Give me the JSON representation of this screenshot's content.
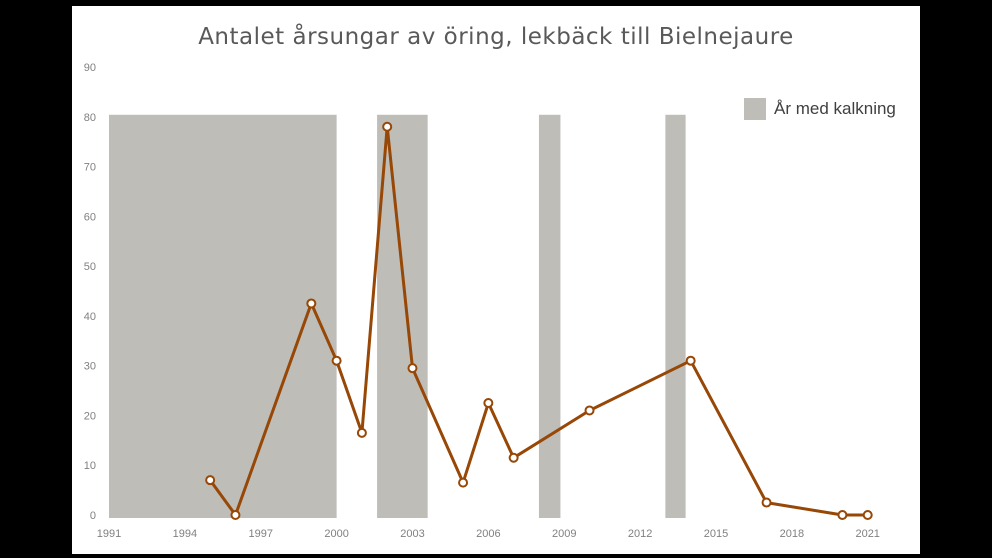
{
  "chart_data": {
    "type": "line",
    "title": "Antalet årsungar av öring, lekbäck till Bielnejaure",
    "xlabel": "",
    "ylabel": "",
    "xlim": [
      1991,
      2022
    ],
    "ylim": [
      0,
      90
    ],
    "x_ticks": [
      1991,
      1994,
      1997,
      2000,
      2003,
      2006,
      2009,
      2012,
      2015,
      2018,
      2021
    ],
    "y_ticks": [
      0,
      10,
      20,
      30,
      40,
      50,
      60,
      70,
      80,
      90
    ],
    "grid": false,
    "legend_position": "top-right",
    "series": [
      {
        "values": [
          {
            "x": 1995,
            "y": 7
          },
          {
            "x": 1996,
            "y": 0
          },
          {
            "x": 1999,
            "y": 42.5
          },
          {
            "x": 2000,
            "y": 31
          },
          {
            "x": 2001,
            "y": 16.5
          },
          {
            "x": 2002,
            "y": 78
          },
          {
            "x": 2003,
            "y": 29.5
          },
          {
            "x": 2005,
            "y": 6.5
          },
          {
            "x": 2006,
            "y": 22.5
          },
          {
            "x": 2007,
            "y": 11.5
          },
          {
            "x": 2010,
            "y": 21
          },
          {
            "x": 2014,
            "y": 31
          },
          {
            "x": 2017,
            "y": 2.5
          },
          {
            "x": 2020,
            "y": 0
          },
          {
            "x": 2021,
            "y": 0
          }
        ]
      }
    ],
    "shaded_periods": {
      "name": "År med kalkning",
      "ranges": [
        [
          1991,
          2000
        ],
        [
          2001.6,
          2003.6
        ],
        [
          2008,
          2008.85
        ],
        [
          2013,
          2013.8
        ]
      ]
    },
    "colors": {
      "line": "#974706",
      "shading": "#bfbdb8",
      "axis_text": "#808080",
      "title": "#595959"
    }
  }
}
